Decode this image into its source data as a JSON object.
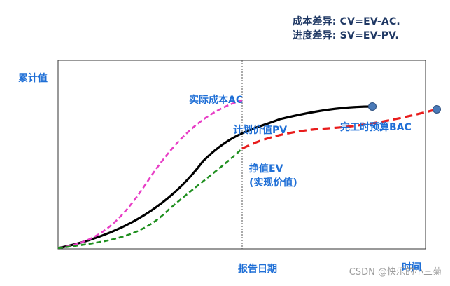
{
  "formulas": {
    "cost_variance": "成本差异: CV=EV-AC.",
    "schedule_variance": "进度差异: SV=EV-PV."
  },
  "axes": {
    "y_label": "累计值",
    "x_label": "时间",
    "status_date_label": "报告日期"
  },
  "curves": {
    "actual_cost": {
      "label": "实际成本AC",
      "color": "#e83ec6"
    },
    "planned_value": {
      "label": "计划价值PV",
      "color": "#000000"
    },
    "earned_value": {
      "label_line1": "挣值EV",
      "label_line2": "(实现价值)",
      "color": "#1f8f1f"
    },
    "bac": {
      "label": "完工时预算BAC",
      "color": "#e81c1c"
    }
  },
  "colors": {
    "label_blue": "#1f6fd6",
    "formula_navy": "#1f3864",
    "marker": "#4a7ab8"
  },
  "watermark": "CSDN @快乐的小三菊"
}
